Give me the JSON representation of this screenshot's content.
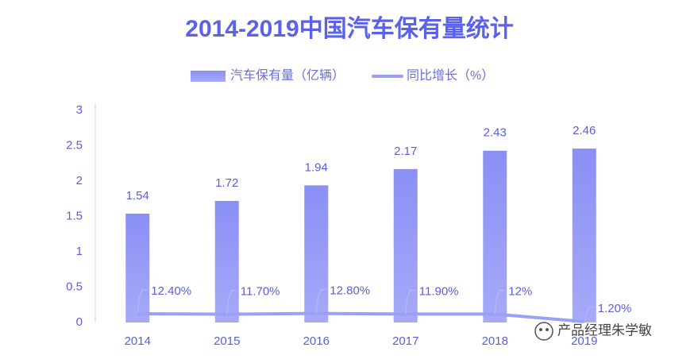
{
  "chart_data": {
    "type": "bar",
    "title": "2014-2019中国汽车保有量统计",
    "categories": [
      "2014",
      "2015",
      "2016",
      "2017",
      "2018",
      "2019"
    ],
    "series": [
      {
        "name": "汽车保有量（亿辆）",
        "type": "bar",
        "color": "#8e93f6",
        "values": [
          1.54,
          1.72,
          1.94,
          2.17,
          2.43,
          2.46
        ]
      },
      {
        "name": "同比增长（%）",
        "type": "line",
        "color": "#9ba0f7",
        "values": [
          0.124,
          0.117,
          0.128,
          0.119,
          0.12,
          0.012
        ],
        "value_labels": [
          "12.40%",
          "11.70%",
          "12.80%",
          "11.90%",
          "12%",
          "1.20%"
        ]
      }
    ],
    "ylim": [
      0,
      3
    ],
    "yticks": [
      0,
      0.5,
      1,
      1.5,
      2,
      2.5,
      3
    ],
    "grid": false,
    "legend": "top",
    "watermark": "产品经理朱学敏"
  }
}
